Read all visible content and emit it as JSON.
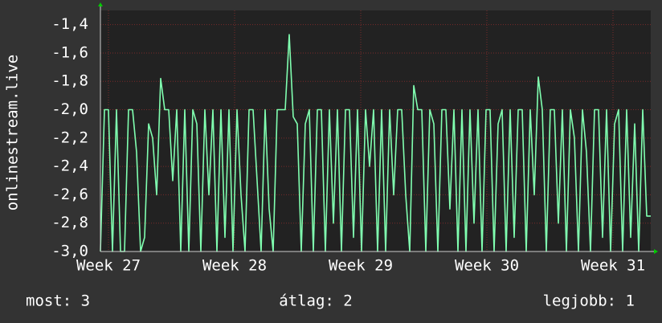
{
  "chart_data": {
    "type": "line",
    "y_label": "onlinestream.live",
    "x": [
      0,
      1,
      2,
      3,
      4,
      5,
      6,
      7,
      8,
      9,
      10,
      11,
      12,
      13,
      14,
      15,
      16,
      17,
      18,
      19,
      20,
      21,
      22,
      23,
      24,
      25,
      26,
      27,
      28,
      29,
      30,
      31,
      32,
      33,
      34,
      35,
      36,
      37,
      38,
      39,
      40,
      41,
      42,
      43,
      44,
      45,
      46,
      47,
      48,
      49,
      50,
      51,
      52,
      53,
      54,
      55,
      56,
      57,
      58,
      59,
      60,
      61,
      62,
      63,
      64,
      65,
      66,
      67,
      68,
      69,
      70,
      71,
      72,
      73,
      74,
      75,
      76,
      77,
      78,
      79,
      80,
      81,
      82,
      83,
      84,
      85,
      86,
      87,
      88,
      89,
      90,
      91,
      92,
      93,
      94,
      95,
      96,
      97,
      98,
      99,
      100,
      101,
      102,
      103,
      104,
      105,
      106,
      107,
      108,
      109,
      110,
      111,
      112,
      113,
      114,
      115,
      116,
      117,
      118,
      119,
      120,
      121,
      122,
      123,
      124,
      125,
      126,
      127,
      128,
      129,
      130,
      131,
      132,
      133,
      134,
      135,
      136,
      137
    ],
    "series": [
      {
        "color": "#80ffb0",
        "values": [
          -3.0,
          -2.0,
          -2.0,
          -3.0,
          -2.0,
          -3.0,
          -3.0,
          -2.0,
          -2.0,
          -2.3,
          -3.0,
          -2.9,
          -2.1,
          -2.2,
          -2.6,
          -1.78,
          -2.0,
          -2.0,
          -2.5,
          -2.0,
          -3.0,
          -2.0,
          -3.0,
          -2.0,
          -2.1,
          -3.0,
          -2.0,
          -2.6,
          -2.0,
          -3.0,
          -2.0,
          -2.9,
          -2.0,
          -3.0,
          -2.0,
          -2.6,
          -3.0,
          -2.0,
          -2.0,
          -2.5,
          -3.0,
          -2.0,
          -2.7,
          -3.0,
          -2.0,
          -2.0,
          -2.0,
          -1.47,
          -2.05,
          -2.1,
          -3.0,
          -2.1,
          -2.0,
          -3.0,
          -2.0,
          -2.0,
          -3.0,
          -2.0,
          -2.8,
          -2.0,
          -3.0,
          -2.0,
          -2.0,
          -2.9,
          -2.0,
          -3.0,
          -2.0,
          -2.4,
          -2.0,
          -3.0,
          -2.0,
          -3.0,
          -2.0,
          -2.6,
          -2.0,
          -2.0,
          -2.6,
          -3.0,
          -1.83,
          -2.0,
          -2.0,
          -3.0,
          -2.0,
          -2.1,
          -3.0,
          -2.0,
          -2.0,
          -2.7,
          -2.0,
          -3.0,
          -2.0,
          -3.0,
          -2.0,
          -2.8,
          -2.0,
          -3.0,
          -2.0,
          -2.0,
          -3.0,
          -2.1,
          -2.0,
          -3.0,
          -2.0,
          -2.9,
          -2.0,
          -2.0,
          -3.0,
          -2.0,
          -2.6,
          -1.77,
          -2.0,
          -3.0,
          -2.0,
          -2.0,
          -2.8,
          -2.0,
          -3.0,
          -2.0,
          -2.2,
          -3.0,
          -2.0,
          -2.3,
          -3.0,
          -2.0,
          -2.0,
          -2.9,
          -2.0,
          -3.0,
          -2.1,
          -2.0,
          -3.0,
          -2.0,
          -2.9,
          -2.1,
          -3.0,
          -2.0,
          -2.75,
          -2.75
        ]
      }
    ],
    "xlim": [
      0,
      137
    ],
    "xticks": [
      {
        "value": 2,
        "label": "Week 27"
      },
      {
        "value": 33.4,
        "label": "Week 28"
      },
      {
        "value": 64.8,
        "label": "Week 29"
      },
      {
        "value": 96.2,
        "label": "Week 30"
      },
      {
        "value": 127.6,
        "label": "Week 31"
      }
    ],
    "ylim": [
      -3.0,
      -1.3
    ],
    "yticks": [
      {
        "value": -3.0,
        "label": "-3,0"
      },
      {
        "value": -2.8,
        "label": "-2,8"
      },
      {
        "value": -2.6,
        "label": "-2,6"
      },
      {
        "value": -2.4,
        "label": "-2,4"
      },
      {
        "value": -2.2,
        "label": "-2,2"
      },
      {
        "value": -2.0,
        "label": "-2,0"
      },
      {
        "value": -1.8,
        "label": "-1,8"
      },
      {
        "value": -1.6,
        "label": "-1,6"
      },
      {
        "value": -1.4,
        "label": "-1,4"
      }
    ],
    "grid": true,
    "footer": [
      "most: 3",
      "átlag: 2",
      "legjobb: 1"
    ]
  }
}
